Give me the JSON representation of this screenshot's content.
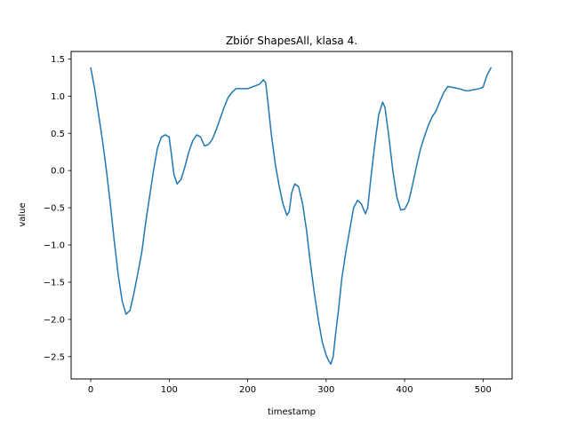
{
  "chart_data": {
    "type": "line",
    "title": "Zbiór ShapesAll, klasa 4.",
    "xlabel": "timestamp",
    "ylabel": "value",
    "xlim": [
      -25,
      537
    ],
    "ylim": [
      -2.8,
      1.6
    ],
    "xticks": [
      0,
      100,
      200,
      300,
      400,
      500
    ],
    "yticks": [
      -2.5,
      -2.0,
      -1.5,
      -1.0,
      -0.5,
      0.0,
      0.5,
      1.0,
      1.5
    ],
    "xtick_labels": [
      "0",
      "100",
      "200",
      "300",
      "400",
      "500"
    ],
    "ytick_labels": [
      "−2.5",
      "−2.0",
      "−1.5",
      "−1.0",
      "−0.5",
      "0.0",
      "0.5",
      "1.0",
      "1.5"
    ],
    "grid": false,
    "series": [
      {
        "color": "#1f77b4",
        "points": [
          [
            0,
            1.38
          ],
          [
            5,
            1.1
          ],
          [
            10,
            0.75
          ],
          [
            15,
            0.4
          ],
          [
            20,
            0.0
          ],
          [
            25,
            -0.45
          ],
          [
            30,
            -0.95
          ],
          [
            35,
            -1.4
          ],
          [
            40,
            -1.75
          ],
          [
            45,
            -1.93
          ],
          [
            50,
            -1.88
          ],
          [
            55,
            -1.65
          ],
          [
            60,
            -1.38
          ],
          [
            65,
            -1.1
          ],
          [
            70,
            -0.7
          ],
          [
            75,
            -0.35
          ],
          [
            80,
            0.0
          ],
          [
            85,
            0.3
          ],
          [
            90,
            0.45
          ],
          [
            95,
            0.48
          ],
          [
            100,
            0.45
          ],
          [
            103,
            0.2
          ],
          [
            106,
            -0.05
          ],
          [
            110,
            -0.18
          ],
          [
            115,
            -0.12
          ],
          [
            120,
            0.05
          ],
          [
            125,
            0.25
          ],
          [
            130,
            0.4
          ],
          [
            135,
            0.48
          ],
          [
            140,
            0.45
          ],
          [
            145,
            0.33
          ],
          [
            150,
            0.35
          ],
          [
            155,
            0.42
          ],
          [
            160,
            0.55
          ],
          [
            165,
            0.7
          ],
          [
            170,
            0.85
          ],
          [
            175,
            0.98
          ],
          [
            180,
            1.05
          ],
          [
            185,
            1.1
          ],
          [
            190,
            1.1
          ],
          [
            195,
            1.1
          ],
          [
            200,
            1.1
          ],
          [
            205,
            1.12
          ],
          [
            210,
            1.14
          ],
          [
            215,
            1.16
          ],
          [
            220,
            1.22
          ],
          [
            223,
            1.18
          ],
          [
            226,
            0.9
          ],
          [
            230,
            0.5
          ],
          [
            235,
            0.1
          ],
          [
            240,
            -0.2
          ],
          [
            245,
            -0.45
          ],
          [
            250,
            -0.6
          ],
          [
            253,
            -0.55
          ],
          [
            256,
            -0.3
          ],
          [
            260,
            -0.18
          ],
          [
            265,
            -0.22
          ],
          [
            270,
            -0.45
          ],
          [
            275,
            -0.8
          ],
          [
            280,
            -1.25
          ],
          [
            285,
            -1.65
          ],
          [
            290,
            -2.0
          ],
          [
            295,
            -2.3
          ],
          [
            300,
            -2.48
          ],
          [
            303,
            -2.55
          ],
          [
            306,
            -2.6
          ],
          [
            309,
            -2.5
          ],
          [
            312,
            -2.2
          ],
          [
            316,
            -1.85
          ],
          [
            320,
            -1.45
          ],
          [
            325,
            -1.1
          ],
          [
            330,
            -0.8
          ],
          [
            335,
            -0.5
          ],
          [
            340,
            -0.4
          ],
          [
            345,
            -0.45
          ],
          [
            350,
            -0.58
          ],
          [
            353,
            -0.5
          ],
          [
            357,
            -0.1
          ],
          [
            362,
            0.35
          ],
          [
            367,
            0.75
          ],
          [
            372,
            0.92
          ],
          [
            375,
            0.85
          ],
          [
            380,
            0.45
          ],
          [
            385,
            0.0
          ],
          [
            390,
            -0.35
          ],
          [
            395,
            -0.53
          ],
          [
            400,
            -0.52
          ],
          [
            405,
            -0.42
          ],
          [
            410,
            -0.2
          ],
          [
            415,
            0.05
          ],
          [
            420,
            0.28
          ],
          [
            425,
            0.45
          ],
          [
            430,
            0.6
          ],
          [
            435,
            0.72
          ],
          [
            440,
            0.8
          ],
          [
            445,
            0.93
          ],
          [
            450,
            1.05
          ],
          [
            455,
            1.13
          ],
          [
            460,
            1.12
          ],
          [
            465,
            1.11
          ],
          [
            470,
            1.1
          ],
          [
            475,
            1.08
          ],
          [
            480,
            1.07
          ],
          [
            485,
            1.08
          ],
          [
            490,
            1.09
          ],
          [
            495,
            1.1
          ],
          [
            500,
            1.12
          ],
          [
            505,
            1.28
          ],
          [
            510,
            1.38
          ]
        ]
      }
    ]
  }
}
